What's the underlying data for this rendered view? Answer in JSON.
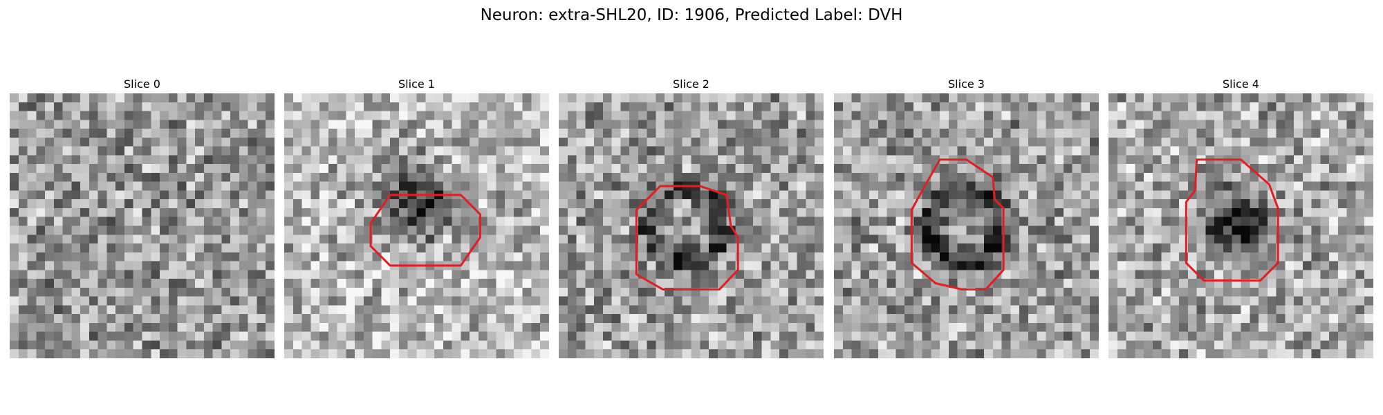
{
  "figure": {
    "title": "Neuron: extra-SHL20, ID: 1906, Predicted Label: DVH",
    "panels": [
      {
        "title": "Slice 0",
        "has_contour": false
      },
      {
        "title": "Slice 1",
        "has_contour": true
      },
      {
        "title": "Slice 2",
        "has_contour": true
      },
      {
        "title": "Slice 3",
        "has_contour": true
      },
      {
        "title": "Slice 4",
        "has_contour": true
      }
    ],
    "image": {
      "type": "grayscale-micrograph",
      "grid": "30x30 pixels",
      "contour_color": "#e02020"
    }
  }
}
